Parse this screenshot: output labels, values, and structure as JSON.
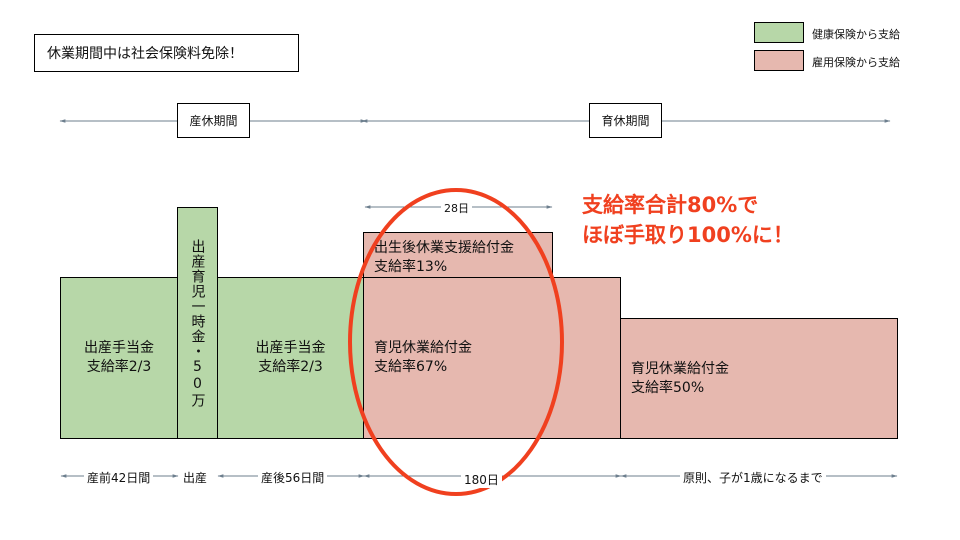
{
  "note": "休業期間中は社会保険料免除！",
  "legend": {
    "health_label": "健康保険から支給",
    "employment_label": "雇用保険から支給",
    "health_color": "#b7d7a8",
    "employment_color": "#e6b8af"
  },
  "periods": {
    "maternity": "産休期間",
    "childcare": "育休期間"
  },
  "blocks": {
    "pre_birth": {
      "title": "出産手当金",
      "rate": "支給率2/3"
    },
    "lump_sum": {
      "vertical": "出産育児一時金・50万"
    },
    "post_birth": {
      "title": "出産手当金",
      "rate": "支給率2/3"
    },
    "paternity_support": {
      "title": "出生後休業支援給付金",
      "rate": "支給率13%"
    },
    "childcare_67": {
      "title": "育児休業給付金",
      "rate": "支給率67%"
    },
    "childcare_50": {
      "title": "育児休業給付金",
      "rate": "支給率50%"
    }
  },
  "span_28": "28日",
  "callout": {
    "line1": "支給率合計80%で",
    "line2": "ほぼ手取り100%に！",
    "color": "#f0401f"
  },
  "timeline": {
    "pre": "産前42日間",
    "birth": "出産",
    "post": "産後56日間",
    "d180": "180日",
    "rest": "原則、子が1歳になるまで"
  }
}
